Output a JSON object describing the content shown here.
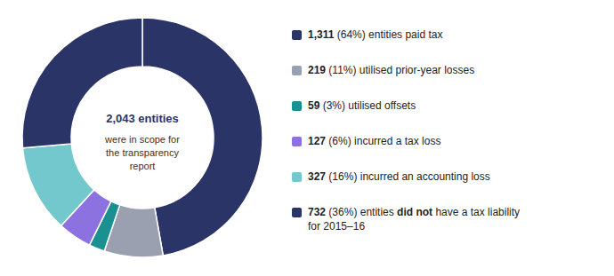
{
  "chart_data": {
    "type": "donut",
    "total": 2043,
    "total_label": "2,043 entities",
    "subtitle": "were in scope for\nthe transparency\nreport",
    "categories": [
      "entities paid tax",
      "utilised prior-year losses",
      "utilised offsets",
      "incurred a tax loss",
      "incurred an accounting loss",
      "entities did not have a tax liability\nfor 2015–16"
    ],
    "highlights": [
      null,
      null,
      null,
      null,
      null,
      "did not"
    ],
    "values": [
      1311,
      219,
      59,
      127,
      327,
      732
    ],
    "value_labels": [
      "1,311",
      "219",
      "59",
      "127",
      "327",
      "732"
    ],
    "shares": [
      64,
      11,
      3,
      6,
      16,
      36
    ],
    "share_labels": [
      "(64%)",
      "(11%)",
      "(3%)",
      "(6%)",
      "(16%)",
      "(36%)"
    ],
    "colors": [
      "#2b3466",
      "#9aa0b0",
      "#1a9090",
      "#8b72e0",
      "#72c8cc",
      "#2b3466"
    ]
  }
}
